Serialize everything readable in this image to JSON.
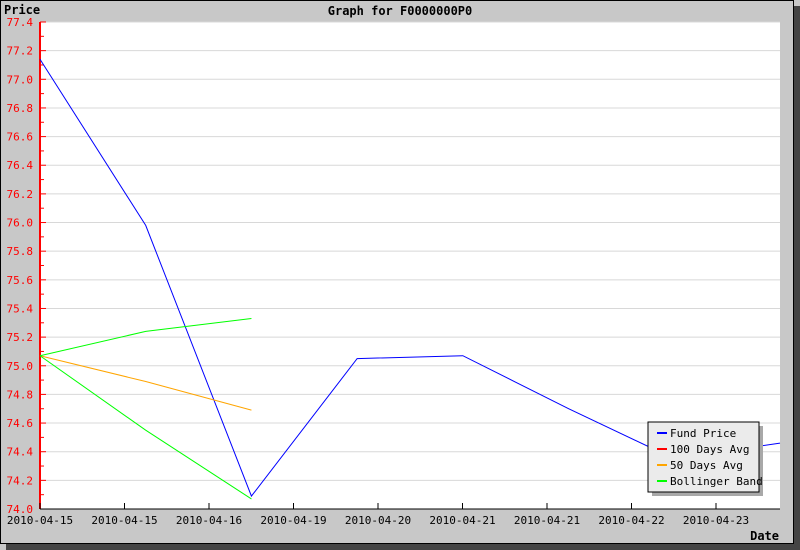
{
  "chart_data": {
    "type": "line",
    "title": "Graph for F0000000P0",
    "xlabel": "Date",
    "ylabel": "Price",
    "ylim": [
      74.0,
      77.4
    ],
    "yticks": [
      "74.0",
      "74.2",
      "74.4",
      "74.6",
      "74.8",
      "75.0",
      "75.2",
      "75.4",
      "75.6",
      "75.8",
      "76.0",
      "76.2",
      "76.4",
      "76.6",
      "76.8",
      "77.0",
      "77.2",
      "77.4"
    ],
    "xticks": [
      "2010-04-15",
      "2010-04-15",
      "2010-04-16",
      "2010-04-19",
      "2010-04-20",
      "2010-04-21",
      "2010-04-21",
      "2010-04-22",
      "2010-04-23"
    ],
    "grid": true,
    "legend_placement": "bottom-right",
    "series": [
      {
        "name": "Fund Price",
        "color": "#0000ff",
        "values": [
          77.14,
          75.98,
          74.09,
          75.05,
          75.07,
          74.7,
          74.35,
          74.46
        ]
      },
      {
        "name": "100 Days Avg",
        "color": "#ff0000",
        "values": []
      },
      {
        "name": "50 Days Avg",
        "color": "#ffa500",
        "values": [
          75.07,
          74.89,
          74.69
        ]
      },
      {
        "name": "Bollinger Band",
        "color": "#00ff00",
        "values": [
          75.07,
          75.24,
          75.33
        ],
        "lower": [
          75.07,
          74.55,
          74.07
        ]
      }
    ]
  }
}
